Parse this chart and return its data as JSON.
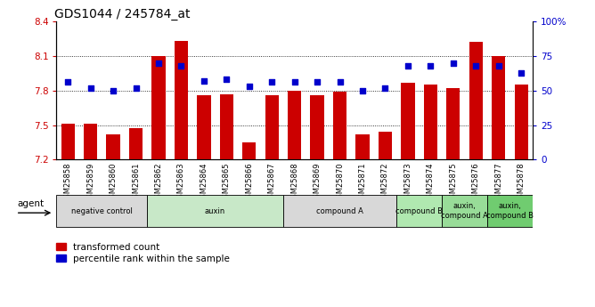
{
  "title": "GDS1044 / 245784_at",
  "samples": [
    "GSM25858",
    "GSM25859",
    "GSM25860",
    "GSM25861",
    "GSM25862",
    "GSM25863",
    "GSM25864",
    "GSM25865",
    "GSM25866",
    "GSM25867",
    "GSM25868",
    "GSM25869",
    "GSM25870",
    "GSM25871",
    "GSM25872",
    "GSM25873",
    "GSM25874",
    "GSM25875",
    "GSM25876",
    "GSM25877",
    "GSM25878"
  ],
  "bar_values": [
    7.51,
    7.51,
    7.42,
    7.47,
    8.1,
    8.23,
    7.76,
    7.77,
    7.35,
    7.76,
    7.8,
    7.76,
    7.79,
    7.42,
    7.44,
    7.87,
    7.85,
    7.82,
    8.22,
    8.1,
    7.85
  ],
  "dot_values": [
    56,
    52,
    50,
    52,
    70,
    68,
    57,
    58,
    53,
    56,
    56,
    56,
    56,
    50,
    52,
    68,
    68,
    70,
    68,
    68,
    63
  ],
  "ylim": [
    7.2,
    8.4
  ],
  "yticks": [
    7.2,
    7.5,
    7.8,
    8.1,
    8.4
  ],
  "ytick_labels": [
    "7.2",
    "7.5",
    "7.8",
    "8.1",
    "8.4"
  ],
  "yright_ticks": [
    0,
    25,
    50,
    75,
    100
  ],
  "yright_labels": [
    "0",
    "25",
    "50",
    "75",
    "100%"
  ],
  "bar_color": "#cc0000",
  "dot_color": "#0000cc",
  "bar_width": 0.6,
  "groups": [
    {
      "label": "negative control",
      "indices": [
        0,
        1,
        2,
        3
      ],
      "color": "#d8d8d8"
    },
    {
      "label": "auxin",
      "indices": [
        4,
        5,
        6,
        7,
        8,
        9
      ],
      "color": "#c8e8c8"
    },
    {
      "label": "compound A",
      "indices": [
        10,
        11,
        12,
        13,
        14
      ],
      "color": "#d8d8d8"
    },
    {
      "label": "compound B",
      "indices": [
        15,
        16
      ],
      "color": "#b0e8b0"
    },
    {
      "label": "auxin,\ncompound A",
      "indices": [
        17,
        18
      ],
      "color": "#98dc98"
    },
    {
      "label": "auxin,\ncompound B",
      "indices": [
        19,
        20
      ],
      "color": "#70cc70"
    }
  ],
  "agent_label": "agent",
  "legend_bar": "transformed count",
  "legend_dot": "percentile rank within the sample",
  "title_fontsize": 10,
  "tick_fontsize": 7.5,
  "label_fontsize": 7.5
}
